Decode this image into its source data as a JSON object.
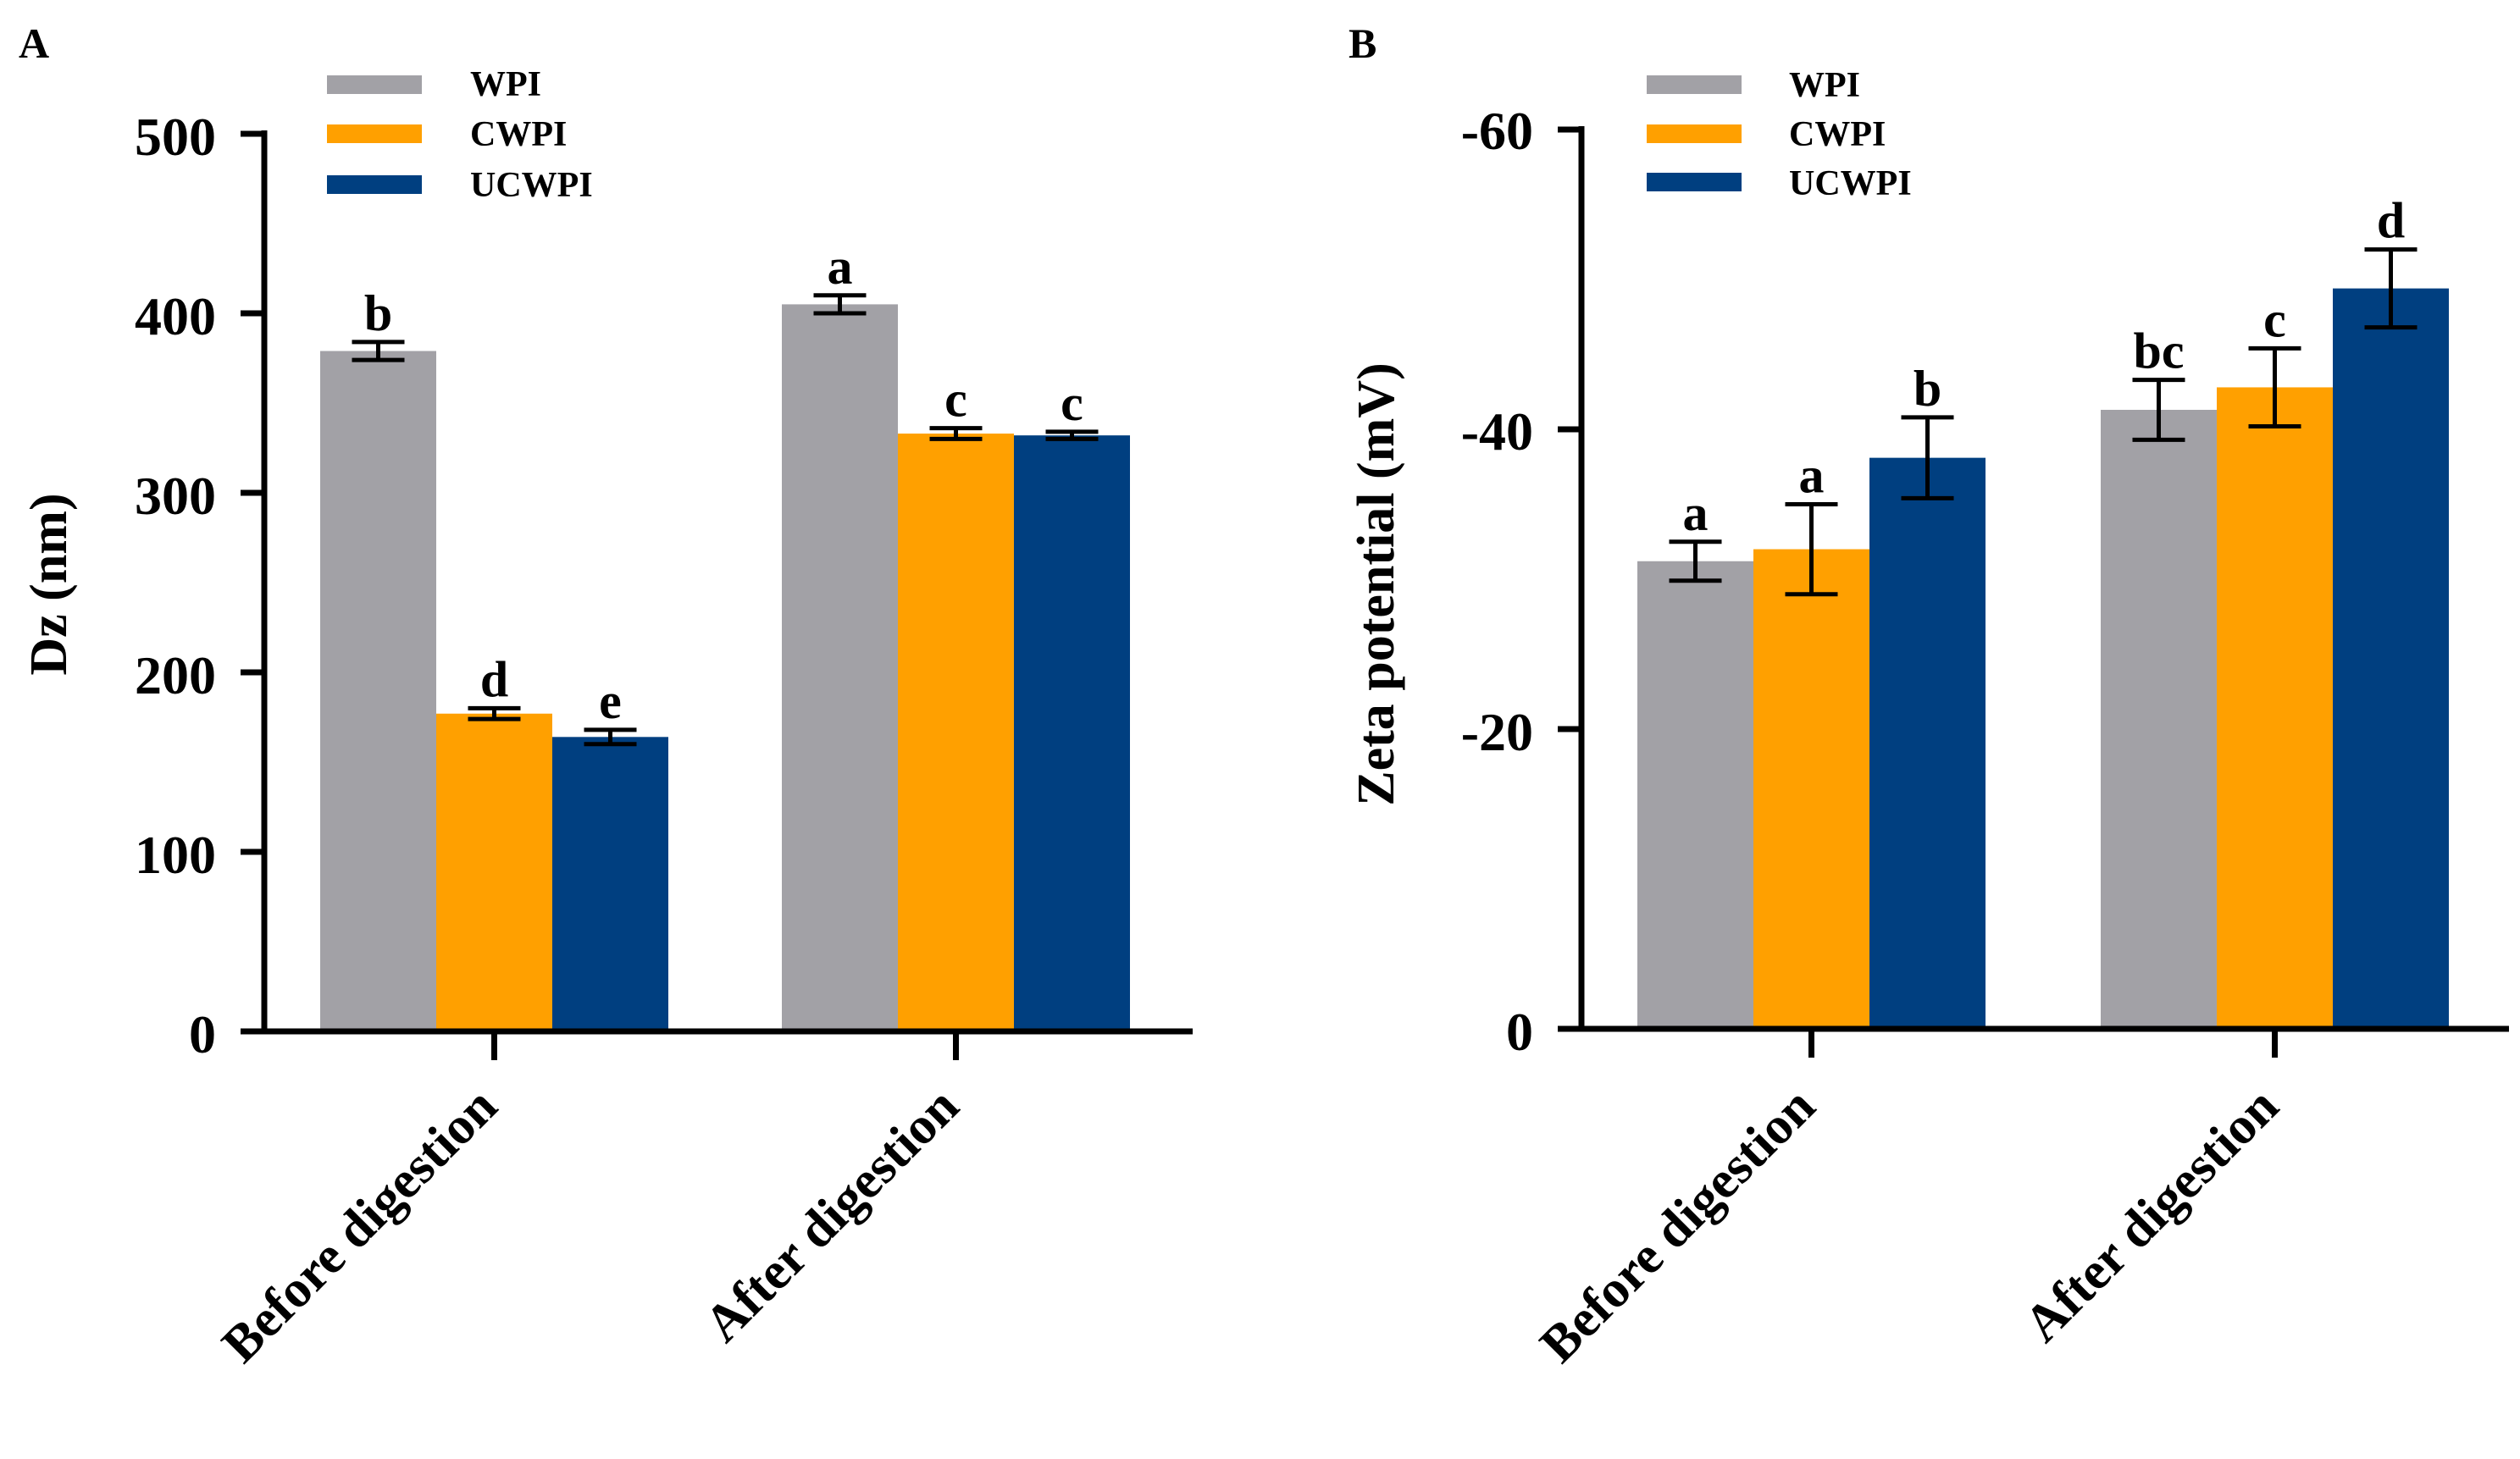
{
  "colors": {
    "WPI": "#a2a1a6",
    "CWPI": "#ffa000",
    "UCWPI": "#003f80",
    "axis": "#000000"
  },
  "chart_data": [
    {
      "panel_label": "A",
      "type": "bar",
      "categories": [
        "Before digestion",
        "After digestion"
      ],
      "series": [
        {
          "name": "WPI",
          "values": [
            379,
            405
          ],
          "errors": [
            5,
            5
          ],
          "letters": [
            "b",
            "a"
          ]
        },
        {
          "name": "CWPI",
          "values": [
            177,
            333
          ],
          "errors": [
            3,
            3
          ],
          "letters": [
            "d",
            "c"
          ]
        },
        {
          "name": "UCWPI",
          "values": [
            164,
            332
          ],
          "errors": [
            4,
            2
          ],
          "letters": [
            "e",
            "c"
          ]
        }
      ],
      "ylabel": "Dz (nm)",
      "yticks": [
        "0",
        "100",
        "200",
        "300",
        "400",
        "500"
      ],
      "ylim": [
        0,
        500
      ],
      "legend_position": "top-left"
    },
    {
      "panel_label": "B",
      "type": "bar",
      "categories": [
        "Before digestion",
        "After digestion"
      ],
      "series": [
        {
          "name": "WPI",
          "values": [
            -31.2,
            -41.3
          ],
          "errors": [
            1.3,
            2.0
          ],
          "letters": [
            "a",
            "bc"
          ]
        },
        {
          "name": "CWPI",
          "values": [
            -32.0,
            -42.8
          ],
          "errors": [
            3.0,
            2.6
          ],
          "letters": [
            "a",
            "c"
          ]
        },
        {
          "name": "UCWPI",
          "values": [
            -38.1,
            -49.4
          ],
          "errors": [
            2.7,
            2.6
          ],
          "letters": [
            "b",
            "d"
          ]
        }
      ],
      "ylabel": "Zeta potential (mV)",
      "yticks": [
        "0",
        "-20",
        "-40",
        "-60"
      ],
      "ylim": [
        0,
        -60
      ],
      "legend_position": "top-left"
    }
  ]
}
